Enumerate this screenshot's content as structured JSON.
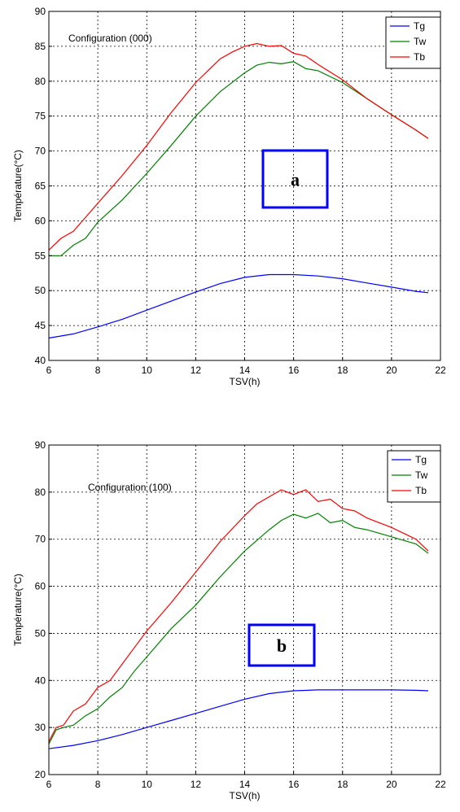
{
  "chart_data": [
    {
      "type": "line",
      "title": "",
      "annotation": "Configuration (000)",
      "panel_label": "a",
      "xlabel": "TSV(h)",
      "ylabel": "Température(°C)",
      "xlim": [
        6,
        22
      ],
      "ylim": [
        40,
        90
      ],
      "xticks": [
        6,
        8,
        10,
        12,
        14,
        16,
        18,
        20,
        22
      ],
      "yticks": [
        40,
        45,
        50,
        55,
        60,
        65,
        70,
        75,
        80,
        85,
        90
      ],
      "grid": true,
      "legend_position": "top-right",
      "series": [
        {
          "name": "Tg",
          "color": "#0000ff",
          "x": [
            6,
            7,
            8,
            9,
            10,
            11,
            12,
            13,
            14,
            15,
            16,
            17,
            18,
            19,
            20,
            21,
            21.5
          ],
          "y": [
            43.2,
            43.8,
            44.8,
            45.9,
            47.2,
            48.5,
            49.8,
            51.0,
            51.9,
            52.3,
            52.3,
            52.1,
            51.7,
            51.1,
            50.5,
            49.9,
            49.7
          ]
        },
        {
          "name": "Tw",
          "color": "#008000",
          "x": [
            6,
            6.5,
            7,
            7.5,
            8,
            9,
            10,
            11,
            12,
            13,
            14,
            14.5,
            15,
            15.5,
            16,
            16.5,
            17,
            18,
            19,
            20,
            21,
            21.5
          ],
          "y": [
            55.0,
            55.0,
            56.5,
            57.5,
            59.8,
            63.0,
            66.8,
            70.8,
            75.0,
            78.5,
            81.2,
            82.3,
            82.7,
            82.5,
            82.8,
            81.8,
            81.5,
            79.8,
            77.5,
            75.2,
            73.0,
            71.8
          ]
        },
        {
          "name": "Tb",
          "color": "#ff0000",
          "x": [
            6,
            6.5,
            7,
            7.5,
            8,
            9,
            10,
            11,
            12,
            13,
            13.5,
            14,
            14.5,
            15,
            15.5,
            16,
            16.5,
            17,
            18,
            19,
            20,
            21,
            21.5
          ],
          "y": [
            55.8,
            57.5,
            58.5,
            60.5,
            62.5,
            66.5,
            70.8,
            75.5,
            79.8,
            83.2,
            84.2,
            85.0,
            85.4,
            85.0,
            85.1,
            84.0,
            83.6,
            82.4,
            80.2,
            77.5,
            75.2,
            73.0,
            71.8
          ]
        }
      ]
    },
    {
      "type": "line",
      "title": "",
      "annotation": "Configuration (100)",
      "panel_label": "b",
      "xlabel": "TSV(h)",
      "ylabel": "Température(°C)",
      "xlim": [
        6,
        22
      ],
      "ylim": [
        20,
        90
      ],
      "xticks": [
        6,
        8,
        10,
        12,
        14,
        16,
        18,
        20,
        22
      ],
      "yticks": [
        20,
        30,
        40,
        50,
        60,
        70,
        80,
        90
      ],
      "grid": true,
      "legend_position": "top-right",
      "series": [
        {
          "name": "Tg",
          "color": "#0000ff",
          "x": [
            6,
            7,
            8,
            9,
            10,
            11,
            12,
            13,
            14,
            15,
            16,
            17,
            18,
            19,
            20,
            21,
            21.5
          ],
          "y": [
            25.5,
            26.2,
            27.2,
            28.5,
            30.0,
            31.5,
            33.0,
            34.5,
            36.0,
            37.2,
            37.8,
            38.0,
            38.0,
            38.0,
            38.0,
            37.9,
            37.8
          ]
        },
        {
          "name": "Tw",
          "color": "#008000",
          "x": [
            6,
            6.3,
            6.6,
            7,
            7.5,
            8,
            8.5,
            9,
            9.5,
            10,
            11,
            12,
            13,
            14,
            15,
            15.5,
            16,
            16.5,
            17,
            17.5,
            18,
            18.5,
            19,
            20,
            21,
            21.5
          ],
          "y": [
            26.5,
            29.5,
            30.0,
            30.5,
            32.5,
            34.0,
            36.5,
            38.5,
            42.0,
            45.0,
            51.0,
            56.0,
            62.0,
            67.5,
            72.0,
            74.0,
            75.3,
            74.5,
            75.5,
            73.5,
            74.0,
            72.5,
            72.0,
            70.5,
            69.0,
            67.0
          ]
        },
        {
          "name": "Tb",
          "color": "#ff0000",
          "x": [
            6,
            6.3,
            6.6,
            7,
            7.5,
            8,
            8.5,
            9,
            9.5,
            10,
            11,
            12,
            13,
            14,
            14.5,
            15,
            15.5,
            16,
            16.5,
            17,
            17.5,
            18,
            18.5,
            19,
            20,
            21,
            21.5
          ],
          "y": [
            27.0,
            30.0,
            30.5,
            33.5,
            35.0,
            38.5,
            40.0,
            43.5,
            47.0,
            50.5,
            56.5,
            63.0,
            69.5,
            75.0,
            77.5,
            79.0,
            80.5,
            79.5,
            80.5,
            78.0,
            78.5,
            76.5,
            76.0,
            74.5,
            72.5,
            70.0,
            67.5
          ]
        }
      ]
    }
  ]
}
